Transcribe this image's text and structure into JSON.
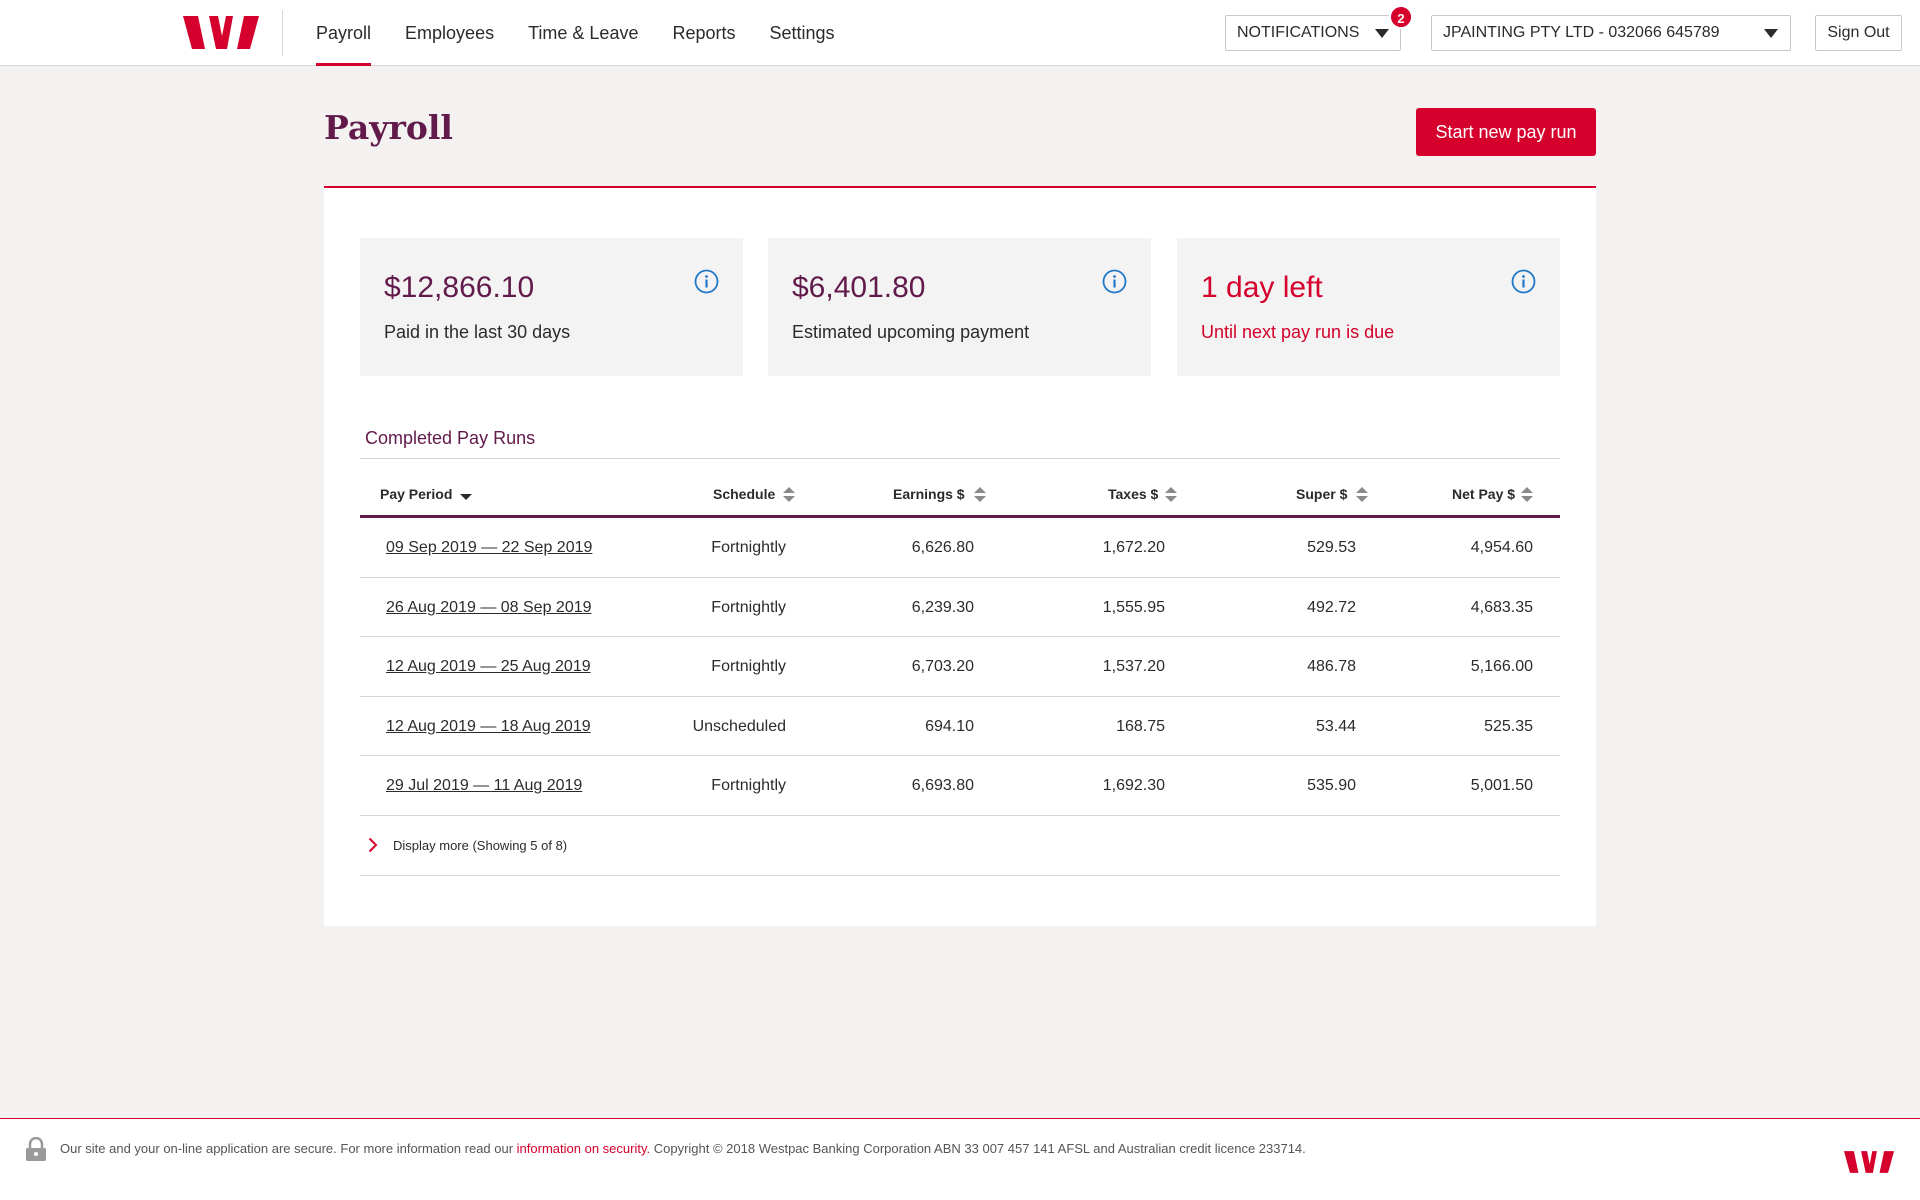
{
  "nav": {
    "items": [
      {
        "label": "Payroll",
        "active": true
      },
      {
        "label": "Employees",
        "active": false
      },
      {
        "label": "Time & Leave",
        "active": false
      },
      {
        "label": "Reports",
        "active": false
      },
      {
        "label": "Settings",
        "active": false
      }
    ],
    "notifications_label": "NOTIFICATIONS",
    "notifications_count": "2",
    "organisation": "JPAINTING PTY LTD - 032066 645789",
    "sign_out": "Sign Out"
  },
  "header": {
    "title": "Payroll",
    "start_button": "Start new pay run"
  },
  "stats": [
    {
      "value": "$12,866.10",
      "label": "Paid in the last 30 days",
      "alert": false
    },
    {
      "value": "$6,401.80",
      "label": "Estimated upcoming payment",
      "alert": false
    },
    {
      "value": "1 day left",
      "label": "Until next pay run is due",
      "alert": true
    }
  ],
  "completed": {
    "title": "Completed Pay Runs",
    "columns": [
      "Pay Period",
      "Schedule",
      "Earnings $",
      "Taxes $",
      "Super $",
      "Net Pay $"
    ],
    "rows": [
      {
        "period": "09 Sep 2019 — 22 Sep 2019",
        "schedule": "Fortnightly",
        "earnings": "6,626.80",
        "taxes": "1,672.20",
        "super": "529.53",
        "net": "4,954.60"
      },
      {
        "period": "26 Aug 2019 — 08 Sep 2019",
        "schedule": "Fortnightly",
        "earnings": "6,239.30",
        "taxes": "1,555.95",
        "super": "492.72",
        "net": "4,683.35"
      },
      {
        "period": "12 Aug 2019 — 25 Aug 2019",
        "schedule": "Fortnightly",
        "earnings": "6,703.20",
        "taxes": "1,537.20",
        "super": "486.78",
        "net": "5,166.00"
      },
      {
        "period": "12 Aug 2019 — 18 Aug 2019",
        "schedule": "Unscheduled",
        "earnings": "694.10",
        "taxes": "168.75",
        "super": "53.44",
        "net": "525.35"
      },
      {
        "period": "29 Jul 2019 — 11 Aug 2019",
        "schedule": "Fortnightly",
        "earnings": "6,693.80",
        "taxes": "1,692.30",
        "super": "535.90",
        "net": "5,001.50"
      }
    ],
    "display_more": "Display more (Showing 5 of 8)"
  },
  "footer": {
    "text_before": "Our site and your on-line application are secure. For more information read our ",
    "link": "information on security.",
    "text_after": " Copyright © 2018 Westpac Banking Corporation ABN 33 007 457 141 AFSL and Australian credit licence 233714."
  },
  "colors": {
    "accent": "#d5002b",
    "brand": "#621a4b",
    "background": "#f3f2f0"
  },
  "icons": [
    "westpac-logo",
    "chevron-down-icon",
    "info-icon",
    "sort-icon",
    "sort-down-icon",
    "chevron-right-icon",
    "lock-icon"
  ]
}
